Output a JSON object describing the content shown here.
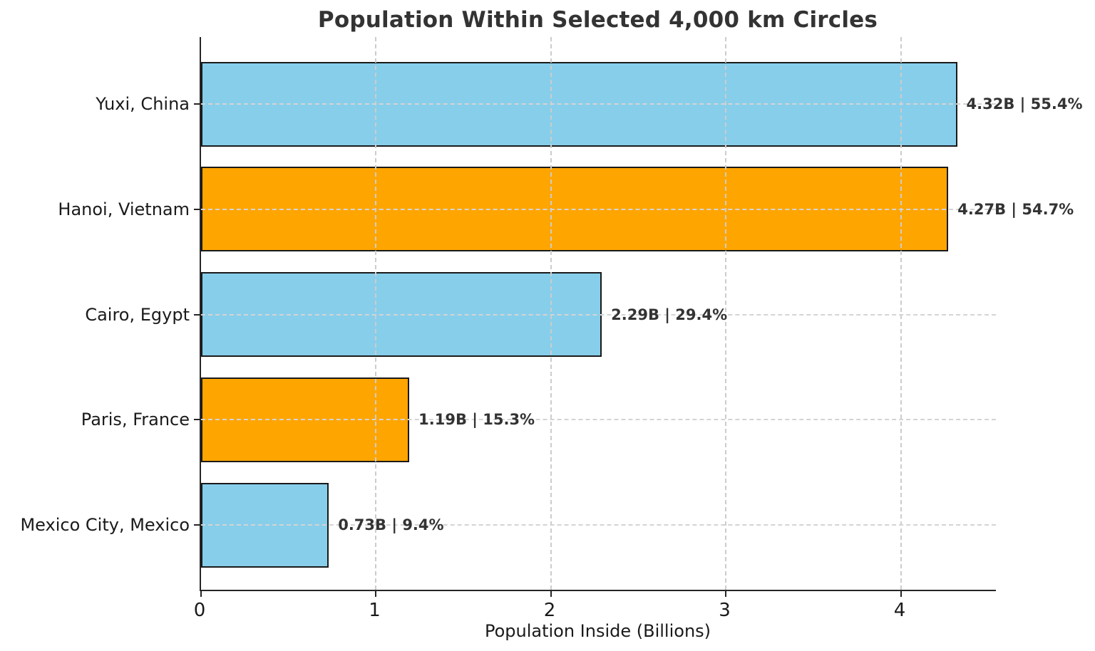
{
  "chart_data": {
    "type": "bar",
    "orientation": "horizontal",
    "title": "Population Within Selected 4,000 km Circles",
    "xlabel": "Population Inside (Billions)",
    "ylabel": "",
    "categories": [
      "Yuxi, China",
      "Hanoi, Vietnam",
      "Cairo, Egypt",
      "Paris, France",
      "Mexico City, Mexico"
    ],
    "values": [
      4.32,
      4.27,
      2.29,
      1.19,
      0.73
    ],
    "percent_of_world": [
      55.4,
      54.7,
      29.4,
      15.3,
      9.4
    ],
    "annotations": [
      "4.32B | 55.4%",
      "4.27B | 54.7%",
      "2.29B | 29.4%",
      "1.19B | 15.3%",
      "0.73B | 9.4%"
    ],
    "bar_colors": [
      "#87CEEB",
      "#FFA500",
      "#87CEEB",
      "#FFA500",
      "#87CEEB"
    ],
    "xlim": [
      0,
      4.55
    ],
    "xticks": [
      0,
      1,
      2,
      3,
      4
    ],
    "grid": true,
    "legend": "none",
    "colors": {
      "skyblue": "#87CEEB",
      "orange": "#FFA500",
      "bar_edge": "#1a1a1a",
      "grid": "#cccccc",
      "title_text": "#333333",
      "axis_text": "#1a1a1a",
      "spine": "#262626",
      "background": "#ffffff"
    }
  }
}
